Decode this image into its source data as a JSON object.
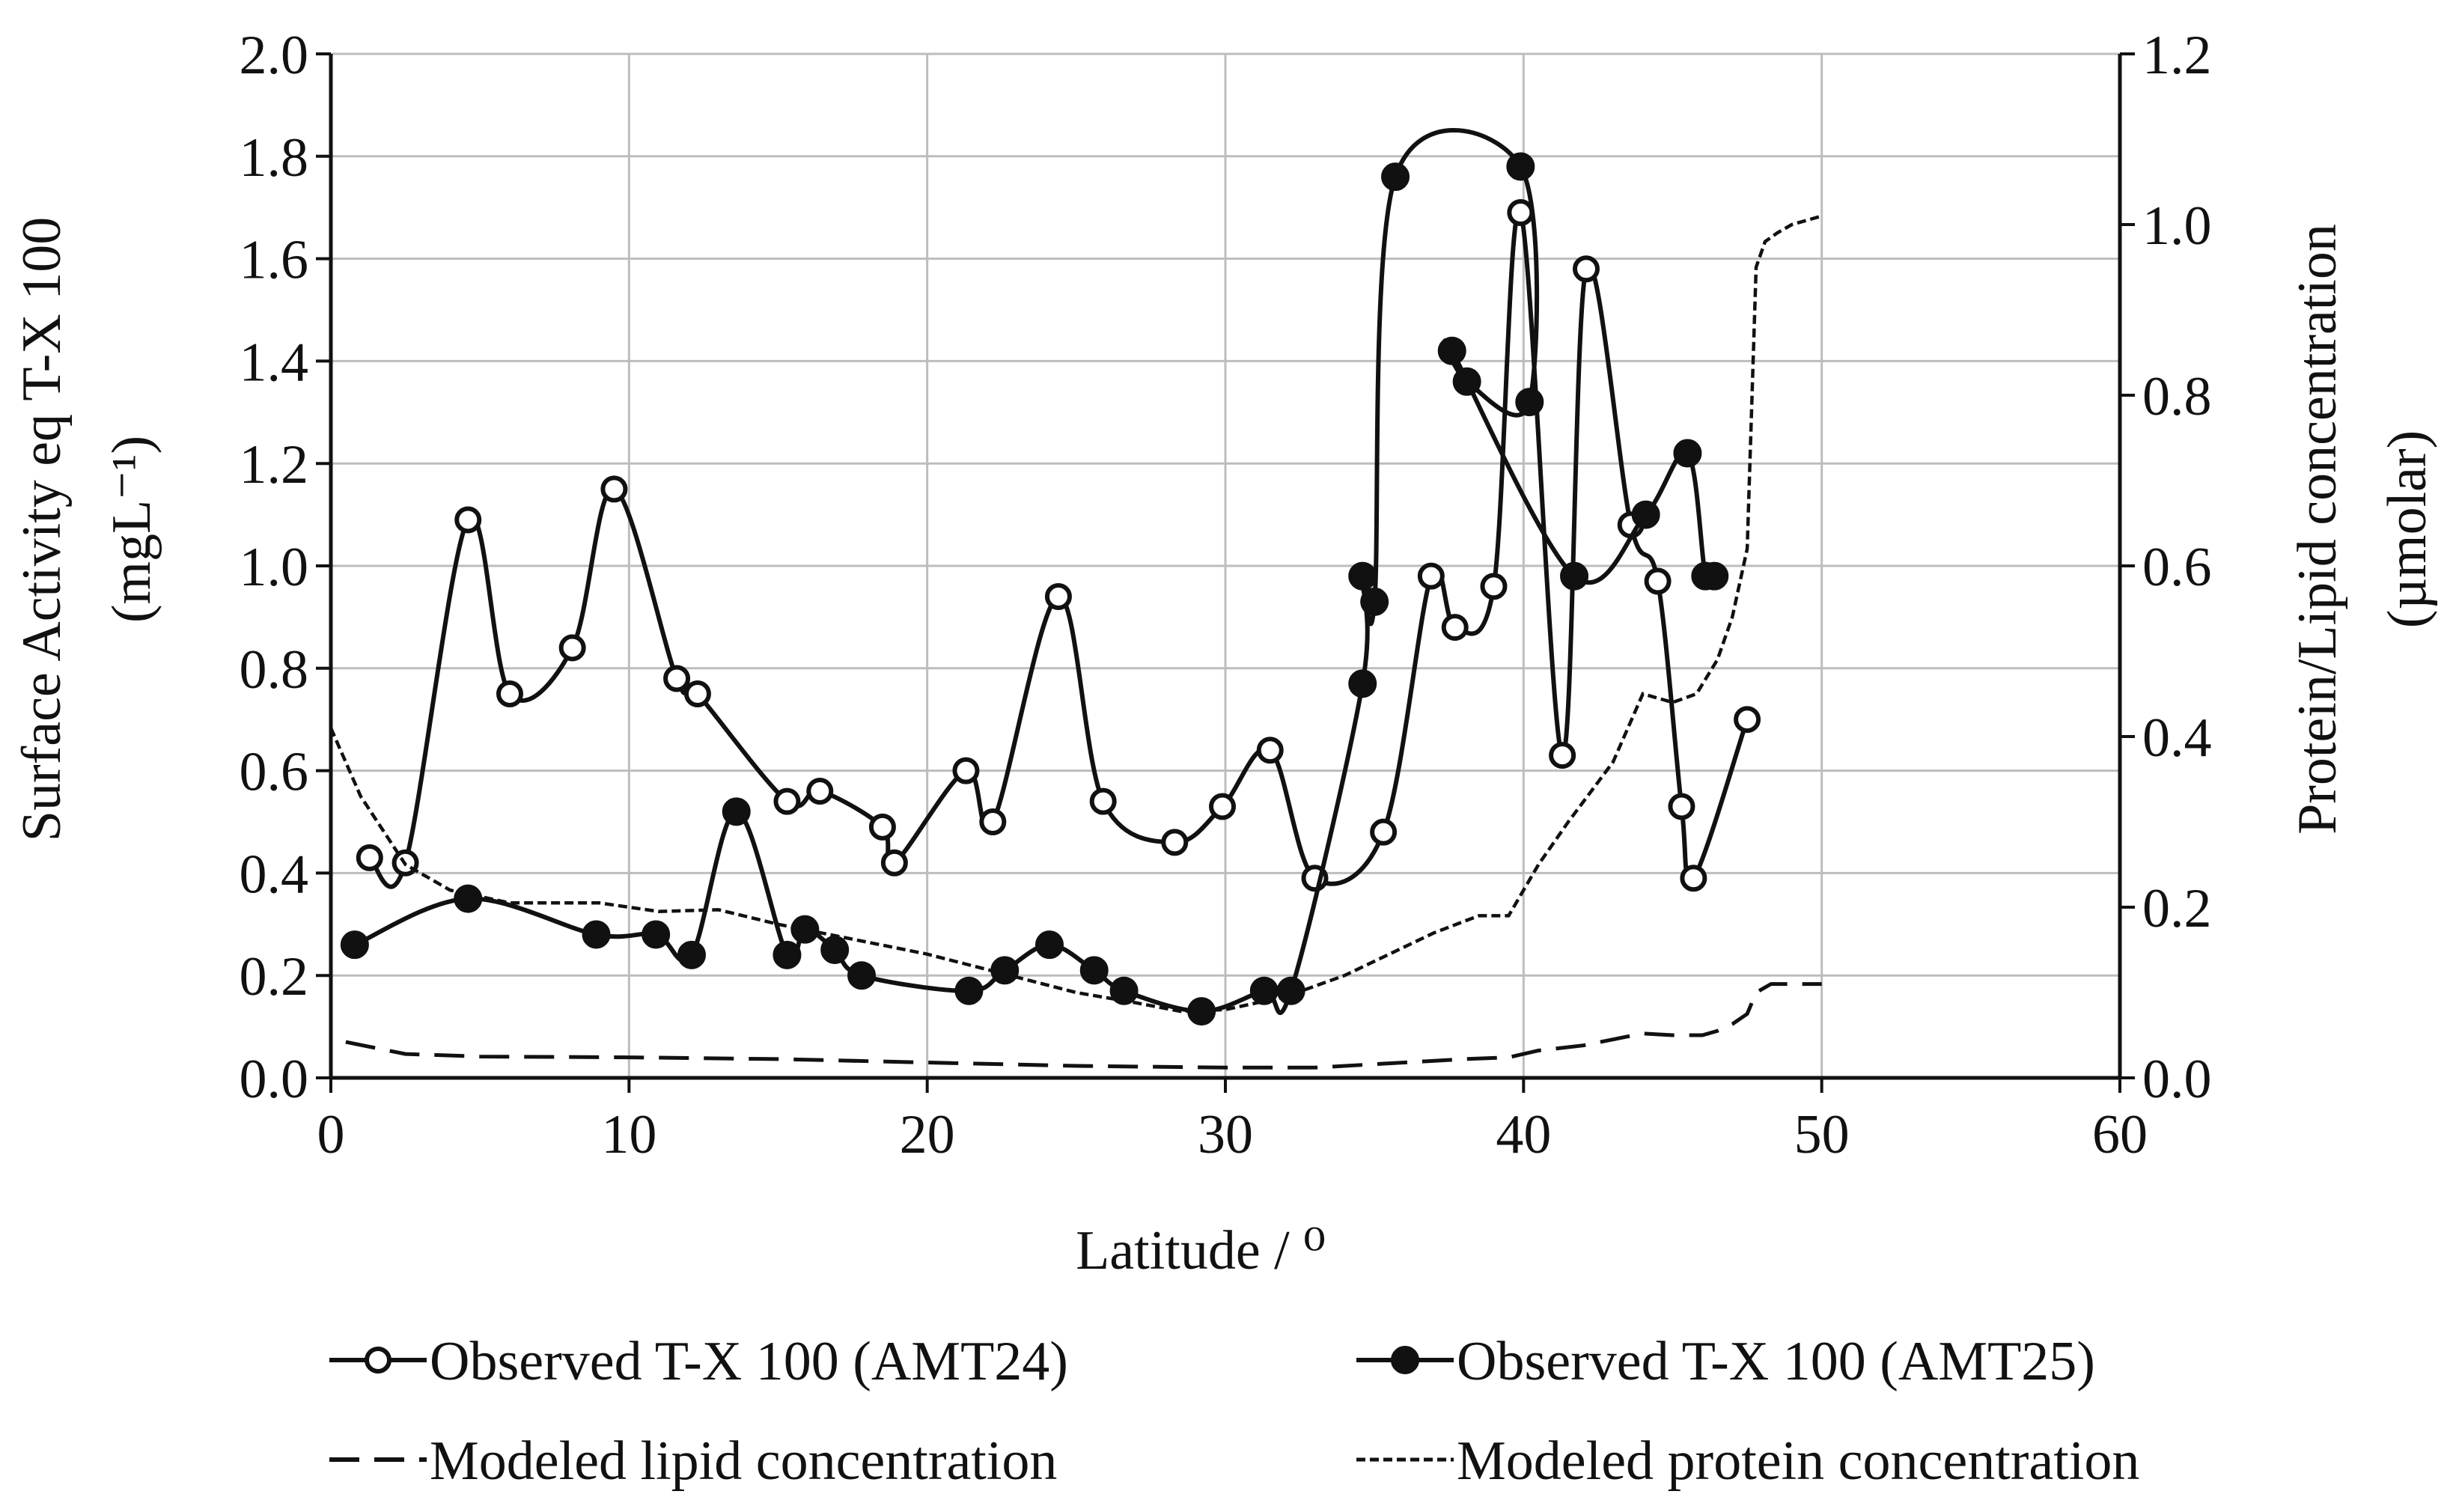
{
  "chart_data": {
    "type": "line",
    "title": "",
    "xlabel": "Latitude / ⁰",
    "ylabel_left_line1": "Surface Activity eq T-X 100",
    "ylabel_left_line2": "(mgL⁻¹)",
    "ylabel_right_line1": "Protein/Lipid concentration",
    "ylabel_right_line2": "(µmolar)",
    "xlim": [
      0,
      60
    ],
    "ylim_left": [
      0,
      2.0
    ],
    "ylim_right": [
      0,
      1.2
    ],
    "grid": true,
    "legend_position": "bottom",
    "x_ticks": [
      "0",
      "10",
      "20",
      "30",
      "40",
      "50",
      "60"
    ],
    "y_left_ticks": [
      "0.0",
      "0.2",
      "0.4",
      "0.6",
      "0.8",
      "1.0",
      "1.2",
      "1.4",
      "1.6",
      "1.8",
      "2.0"
    ],
    "y_right_ticks": [
      "0.0",
      "0.2",
      "0.4",
      "0.6",
      "0.8",
      "1.0",
      "1.2"
    ],
    "series": [
      {
        "name": "Observed T-X 100 (AMT24)",
        "axis": "left",
        "style": "line-open-circle",
        "color": "#111111",
        "x": [
          1.3,
          2.5,
          4.6,
          6.0,
          8.1,
          9.5,
          11.6,
          12.3,
          15.3,
          16.4,
          18.5,
          18.9,
          21.3,
          22.2,
          24.4,
          25.9,
          28.3,
          29.9,
          31.5,
          33.0,
          35.3,
          36.9,
          37.7,
          39.0,
          39.9,
          41.3,
          42.1,
          43.6,
          44.5,
          45.3,
          45.7,
          47.5
        ],
        "values": [
          0.43,
          0.42,
          1.09,
          0.75,
          0.84,
          1.15,
          0.78,
          0.75,
          0.54,
          0.56,
          0.49,
          0.42,
          0.6,
          0.5,
          0.94,
          0.54,
          0.46,
          0.53,
          0.64,
          0.39,
          0.48,
          0.98,
          0.88,
          0.96,
          1.69,
          0.63,
          1.58,
          1.08,
          0.97,
          0.53,
          0.39,
          0.7
        ]
      },
      {
        "name": "Observed T-X 100 (AMT25)",
        "axis": "left",
        "style": "line-filled-circle",
        "color": "#111111",
        "x": [
          0.8,
          4.6,
          8.9,
          10.9,
          12.1,
          13.6,
          15.3,
          15.9,
          16.9,
          17.8,
          21.4,
          22.6,
          24.1,
          25.6,
          26.6,
          29.2,
          31.3,
          32.2,
          34.6,
          34.6,
          35.0,
          35.7,
          39.9,
          40.2,
          38.1,
          37.6,
          41.7,
          44.1,
          45.5,
          46.1,
          46.4
        ],
        "values": [
          0.26,
          0.35,
          0.28,
          0.28,
          0.24,
          0.52,
          0.24,
          0.29,
          0.25,
          0.2,
          0.17,
          0.21,
          0.26,
          0.21,
          0.17,
          0.13,
          0.17,
          0.17,
          0.77,
          0.98,
          0.93,
          1.76,
          1.78,
          1.32,
          1.36,
          1.42,
          0.98,
          1.1,
          1.22,
          0.98,
          0.98
        ]
      },
      {
        "name": "Modeled lipid concentration",
        "axis": "right",
        "style": "dashed",
        "color": "#111111",
        "x": [
          0.5,
          2.5,
          5,
          10,
          15,
          20,
          25,
          30,
          33,
          36,
          38,
          39.5,
          40.5,
          42,
          43,
          44,
          45,
          46,
          46.5,
          47,
          47.5,
          47.8,
          48.3,
          50
        ],
        "values": [
          0.042,
          0.028,
          0.025,
          0.024,
          0.022,
          0.018,
          0.014,
          0.012,
          0.012,
          0.018,
          0.022,
          0.024,
          0.032,
          0.038,
          0.045,
          0.052,
          0.05,
          0.05,
          0.055,
          0.063,
          0.075,
          0.1,
          0.11,
          0.11
        ]
      },
      {
        "name": "Modeled protein concentration",
        "axis": "right",
        "style": "dotted",
        "color": "#111111",
        "x": [
          0,
          1,
          2.5,
          4,
          6,
          9,
          11,
          13,
          15,
          20,
          25,
          27,
          28.5,
          30,
          32,
          34,
          37,
          38.5,
          39.5,
          40.5,
          41.5,
          43,
          44,
          45,
          45.8,
          46.5,
          47,
          47.5,
          47.8,
          48.1,
          48.5,
          49,
          50
        ],
        "values": [
          0.41,
          0.33,
          0.25,
          0.22,
          0.205,
          0.205,
          0.195,
          0.197,
          0.18,
          0.145,
          0.1,
          0.088,
          0.078,
          0.08,
          0.095,
          0.12,
          0.17,
          0.19,
          0.19,
          0.25,
          0.3,
          0.37,
          0.45,
          0.44,
          0.45,
          0.49,
          0.54,
          0.62,
          0.95,
          0.98,
          0.99,
          1.0,
          1.01
        ]
      }
    ]
  }
}
